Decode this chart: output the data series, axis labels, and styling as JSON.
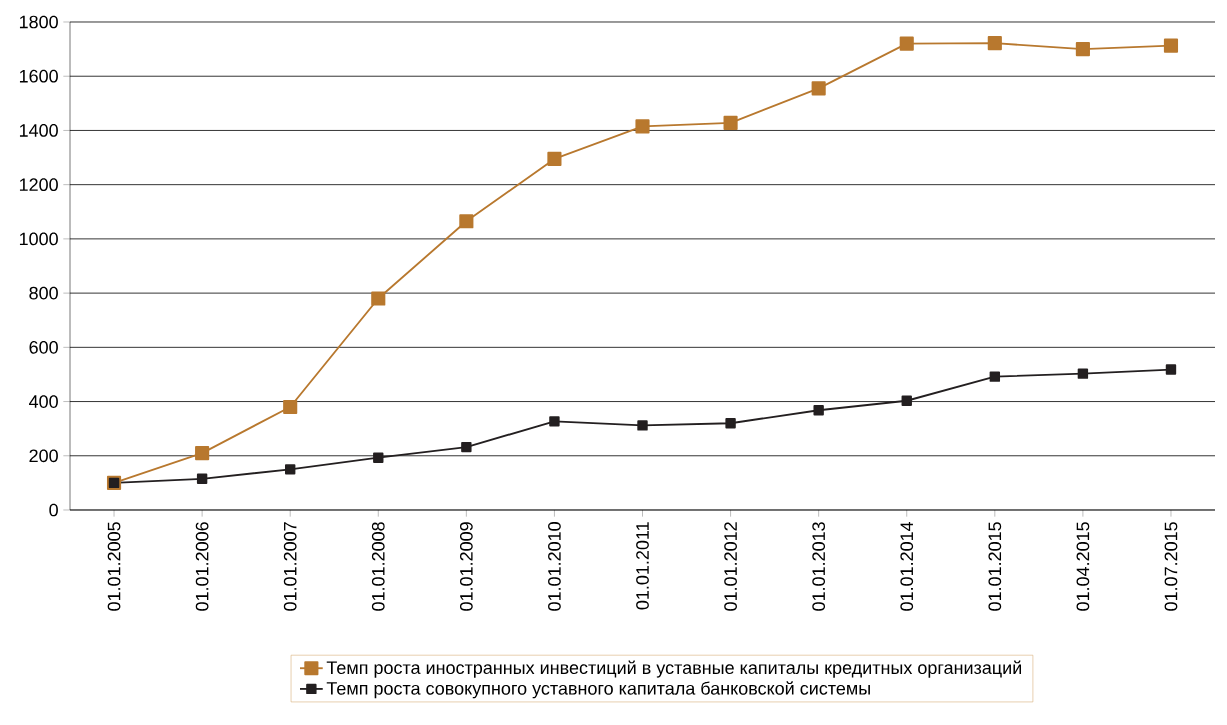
{
  "chart_data": {
    "type": "line",
    "categories": [
      "01.01.2005",
      "01.01.2006",
      "01.01.2007",
      "01.01.2008",
      "01.01.2009",
      "01.01.2010",
      "01.01.2011",
      "01.01.2012",
      "01.01.2013",
      "01.01.2014",
      "01.01.2015",
      "01.04.2015",
      "01.07.2015"
    ],
    "series": [
      {
        "name": "Темп роста иностранных инвестиций в уставные капиталы кредитных организаций",
        "color": "#b8782e",
        "values": [
          100,
          210,
          380,
          780,
          1065,
          1295,
          1415,
          1428,
          1555,
          1720,
          1722,
          1700,
          1713
        ]
      },
      {
        "name": "Темп роста совокупного уставного капитала банковской системы",
        "color": "#231f20",
        "values": [
          100,
          115,
          150,
          193,
          232,
          327,
          312,
          320,
          368,
          403,
          492,
          503,
          518
        ]
      }
    ],
    "ylim": [
      0,
      1800
    ],
    "yticks": [
      0,
      200,
      400,
      600,
      800,
      1000,
      1200,
      1400,
      1600,
      1800
    ],
    "grid": "y",
    "legend": "bottom",
    "marker": "square",
    "line_style": "solid"
  }
}
